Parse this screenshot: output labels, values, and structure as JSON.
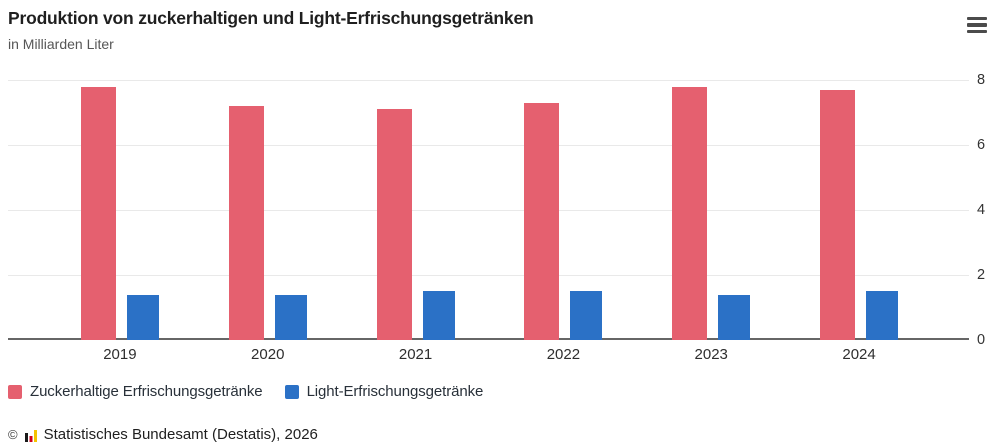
{
  "header": {
    "title": "Produktion von zuckerhaltigen und Light-Erfrischungsgetränken",
    "subtitle": "in Milliarden Liter"
  },
  "menu": {
    "icon": "hamburger-icon"
  },
  "chart_data": {
    "type": "bar",
    "categories": [
      "2019",
      "2020",
      "2021",
      "2022",
      "2023",
      "2024"
    ],
    "series": [
      {
        "name": "Zuckerhaltige Erfrischungsgetränke",
        "color": "#e5606f",
        "values": [
          7.8,
          7.2,
          7.1,
          7.3,
          7.8,
          7.7
        ]
      },
      {
        "name": "Light-Erfrischungsgetränke",
        "color": "#2b71c6",
        "values": [
          1.4,
          1.4,
          1.5,
          1.5,
          1.4,
          1.5
        ]
      }
    ],
    "title": "Produktion von zuckerhaltigen und Light-Erfrischungsgetränken",
    "subtitle": "in Milliarden Liter",
    "xlabel": "",
    "ylabel": "in Milliarden Liter",
    "ylim": [
      0,
      8
    ],
    "yticks": [
      0,
      2,
      4,
      6,
      8
    ],
    "yaxis_side": "right",
    "grid": true,
    "legend_position": "bottom"
  },
  "colors": {
    "series1": "#e5606f",
    "series2": "#2b71c6",
    "gridline": "#e9e9e9",
    "baseline": "#666666"
  },
  "footer": {
    "copyright": "©",
    "source": "Statistisches Bundesamt (Destatis), 2026"
  }
}
